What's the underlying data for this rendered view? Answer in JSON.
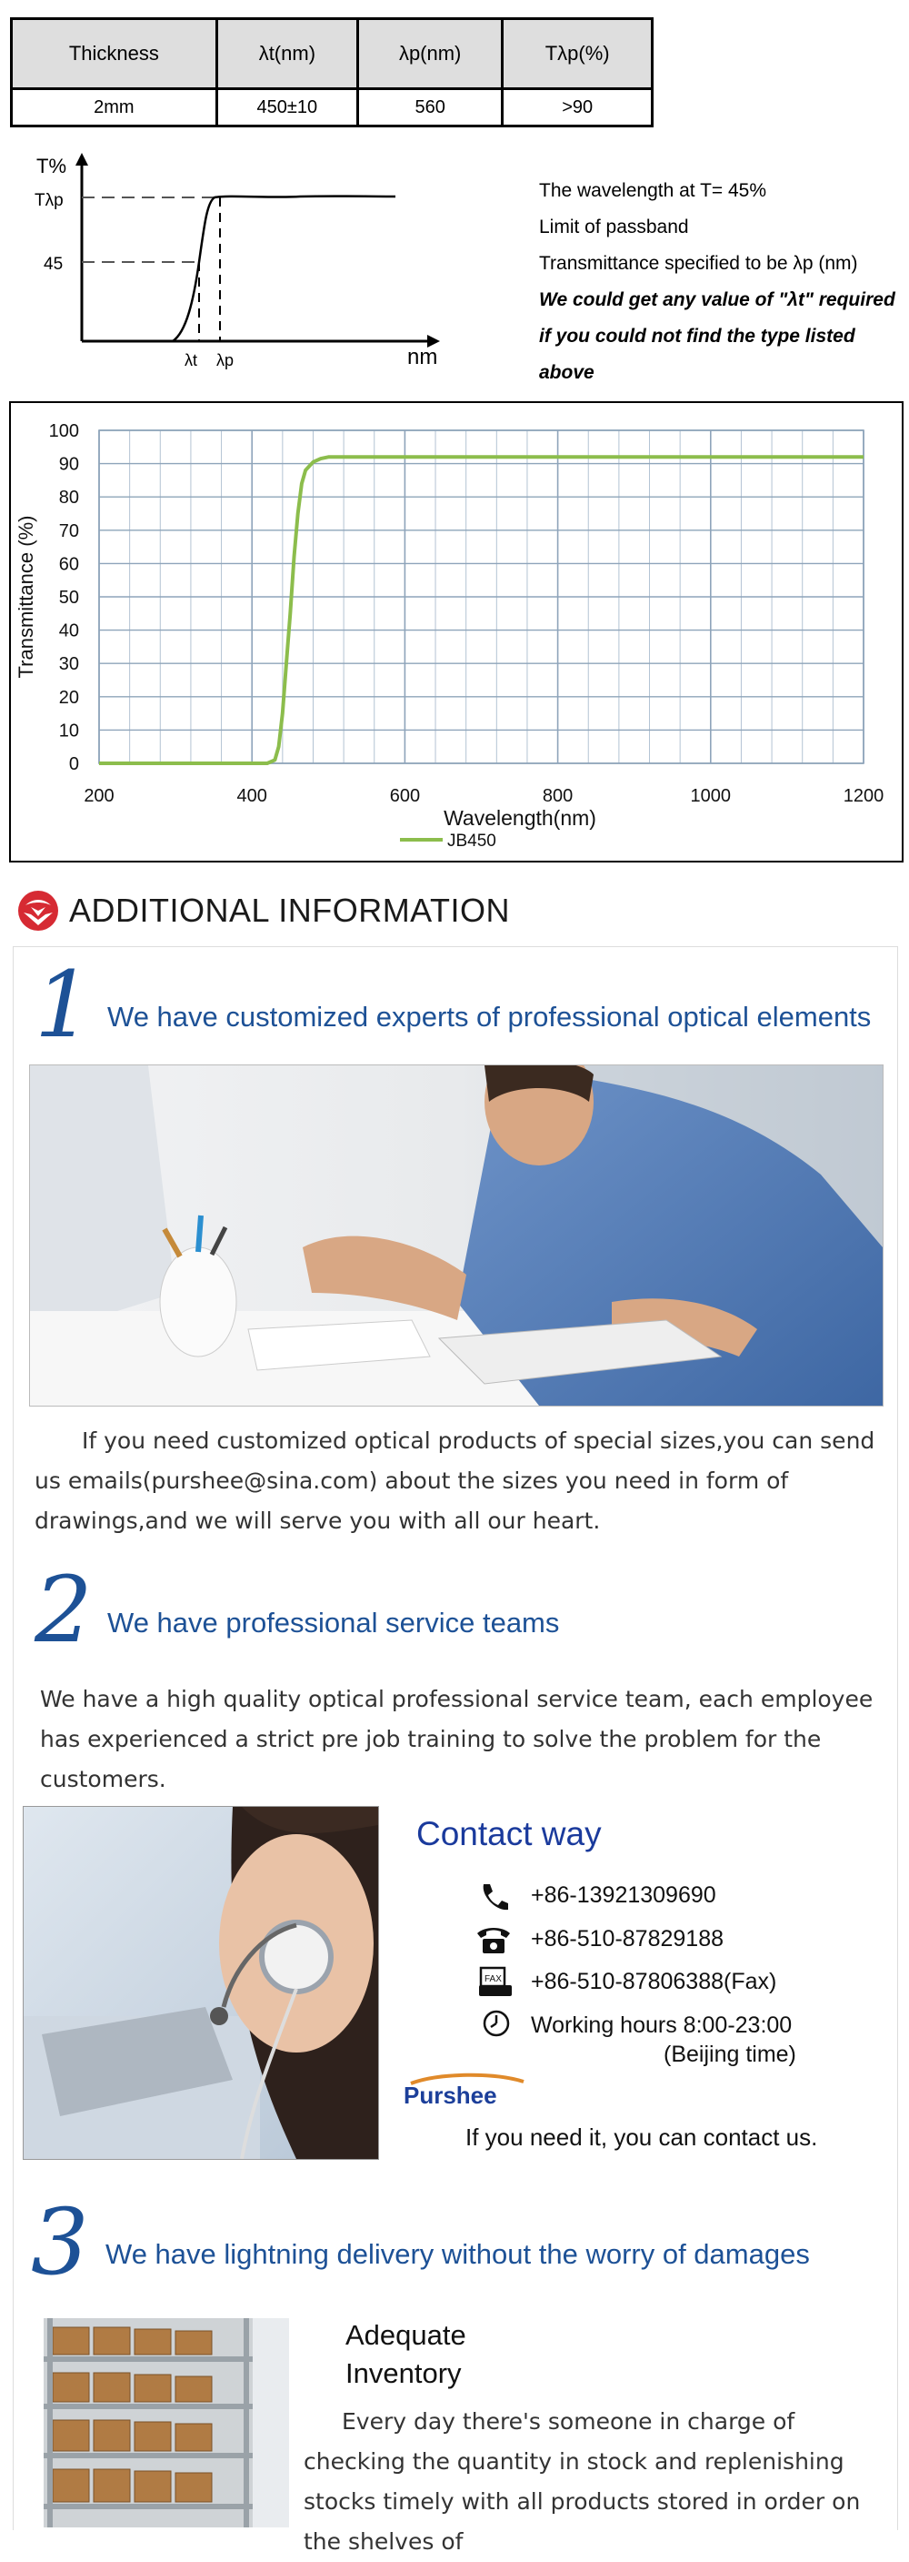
{
  "spec_table": {
    "headers": [
      "Thickness",
      "λt(nm)",
      "λp(nm)",
      "Tλp(%)"
    ],
    "row": [
      "2mm",
      "450±10",
      "560",
      ">90"
    ]
  },
  "schematic": {
    "y_label": "T%",
    "y_tick_top": "Tλp",
    "y_tick_mid": "45",
    "x_tick_t": "λt",
    "x_tick_p": "λp",
    "x_unit": "nm",
    "notes": [
      "The wavelength at  T= 45%",
      "Limit of passband",
      "Transmittance specified to be λp (nm)"
    ],
    "notes_italic": [
      "We could get any value of \"λt\" required",
      "if you could not find the type listed above"
    ]
  },
  "chart_data": {
    "type": "line",
    "xlabel": "Wavelength(nm)",
    "ylabel": "Transmittance (%)",
    "xlim": [
      200,
      1200
    ],
    "ylim": [
      0,
      100
    ],
    "x_ticks": [
      200,
      400,
      600,
      800,
      1000,
      1200
    ],
    "y_ticks": [
      0,
      10,
      20,
      30,
      40,
      50,
      60,
      70,
      80,
      90,
      100
    ],
    "grid": true,
    "legend_position": "bottom-left",
    "series": [
      {
        "name": "JB450",
        "color": "#8cbd4c",
        "x": [
          200,
          420,
          430,
          435,
          440,
          445,
          450,
          455,
          460,
          465,
          470,
          480,
          490,
          500,
          520,
          600,
          800,
          1000,
          1200
        ],
        "y": [
          0,
          0,
          1,
          5,
          15,
          30,
          45,
          62,
          75,
          84,
          88,
          90.5,
          91.5,
          92,
          92,
          92,
          92,
          92,
          92
        ]
      }
    ]
  },
  "additional": {
    "title": "ADDITIONAL INFORMATION"
  },
  "section1": {
    "num": "1",
    "heading": "We have customized experts of professional optical elements",
    "paragraph": "If you need customized optical products of special sizes,you can send us emails(purshee@sina.com) about the sizes you need in form of drawings,and we will serve you with all our heart."
  },
  "section2": {
    "num": "2",
    "heading": "We have professional service teams",
    "paragraph": "We have a high quality optical professional service team, each employee has experienced a strict pre job training to solve the problem for the customers."
  },
  "contact": {
    "title": "Contact way",
    "phone": "+86-13921309690",
    "tel": "+86-510-87829188",
    "fax": "+86-510-87806388(Fax)",
    "hours": "Working hours 8:00-23:00",
    "hours_note": "(Beijing time)",
    "brand": "Purshee",
    "closing": "If you need it, you can contact us."
  },
  "section3": {
    "num": "3",
    "heading": "We have lightning delivery without the worry of damages",
    "sub_line1": "Adequate",
    "sub_line2": "Inventory",
    "paragraph": "Every day there's someone in charge of checking the quantity in stock and replenishing stocks timely with all products  stored  in order on the shelves of"
  }
}
